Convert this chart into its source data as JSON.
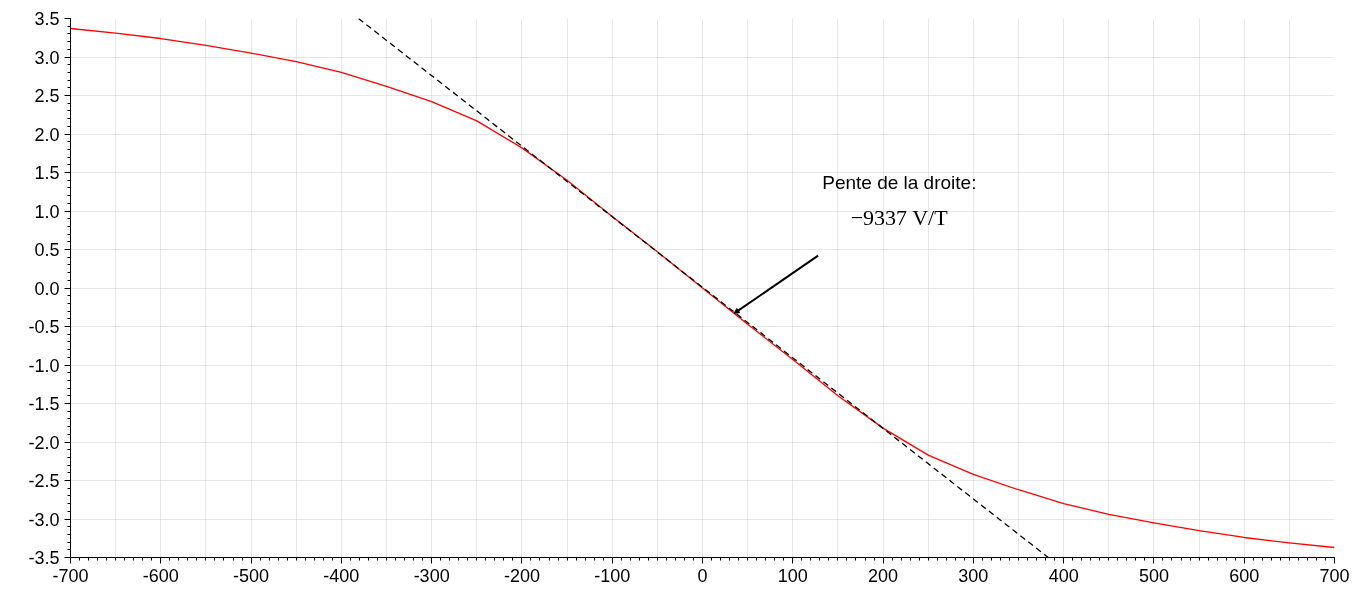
{
  "chart_data": {
    "type": "line",
    "xlim": [
      -700,
      700
    ],
    "xticks": [
      -700,
      -600,
      -500,
      -400,
      -300,
      -200,
      -100,
      0,
      100,
      200,
      300,
      400,
      500,
      600,
      700
    ],
    "ylim": [
      -3.5,
      3.5
    ],
    "yticks": [
      {
        "value": 3.5,
        "label": "3.5"
      },
      {
        "value": 3,
        "label": "3.0"
      },
      {
        "value": 2.5,
        "label": "2.5"
      },
      {
        "value": 2,
        "label": "2.0"
      },
      {
        "value": 1.5,
        "label": "1.5"
      },
      {
        "value": 1,
        "label": "1.0"
      },
      {
        "value": 0.5,
        "label": "0.5"
      },
      {
        "value": 0,
        "label": "0.0"
      },
      {
        "value": -0.5,
        "label": "-0.5"
      },
      {
        "value": -1,
        "label": "-1.0"
      },
      {
        "value": -1.5,
        "label": "-1.5"
      },
      {
        "value": -2,
        "label": "-2.0"
      },
      {
        "value": -2.5,
        "label": "-2.5"
      },
      {
        "value": -3,
        "label": "-3.0"
      },
      {
        "value": -3.5,
        "label": "-3.5"
      }
    ],
    "grid": true,
    "x": [
      -700,
      -650,
      -600,
      -550,
      -500,
      -450,
      -400,
      -350,
      -300,
      -250,
      -200,
      -150,
      -100,
      -50,
      0,
      50,
      100,
      150,
      200,
      250,
      300,
      350,
      400,
      450,
      500,
      550,
      600,
      650,
      700
    ],
    "series": [
      {
        "color": "#ff0000",
        "line_style": "solid",
        "values": [
          3.37,
          3.31,
          3.24,
          3.15,
          3.05,
          2.94,
          2.8,
          2.62,
          2.42,
          2.17,
          1.82,
          1.4,
          0.93,
          0.47,
          0,
          -0.47,
          -0.93,
          -1.4,
          -1.82,
          -2.17,
          -2.42,
          -2.62,
          -2.8,
          -2.94,
          -3.05,
          -3.15,
          -3.24,
          -3.31,
          -3.37
        ]
      },
      {
        "type": "line",
        "color": "#000000",
        "line_style": "dashed",
        "x": [
          -381,
          383
        ],
        "values": [
          3.5,
          -3.5
        ]
      }
    ],
    "annotations": [
      {
        "text": "Pente de la droite:\n−9337 V/T",
        "x": 35,
        "y": -0.33
      }
    ]
  }
}
